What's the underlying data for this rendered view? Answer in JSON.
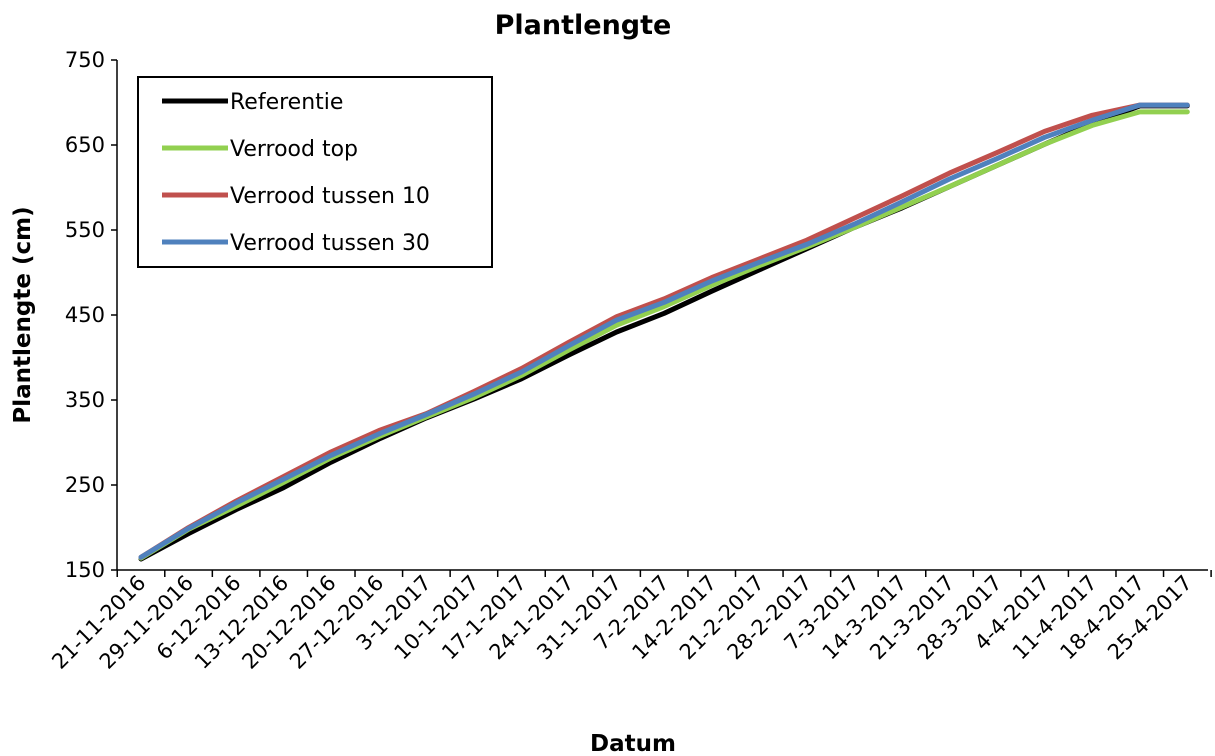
{
  "chart_data": {
    "type": "line",
    "title": "Plantlengte",
    "xlabel": "Datum",
    "ylabel": "Plantlengte (cm)",
    "ylim": [
      150,
      750
    ],
    "yticks": [
      150,
      250,
      350,
      450,
      550,
      650,
      750
    ],
    "legend_position": "top-left",
    "grid": false,
    "x_tick_labels": [
      "21-11-2016",
      "29-11-2016",
      "6-12-2016",
      "13-12-2016",
      "20-12-2016",
      "27-12-2016",
      "3-1-2017",
      "10-1-2017",
      "17-1-2017",
      "24-1-2017",
      "31-1-2017",
      "7-2-2017",
      "14-2-2017",
      "21-2-2017",
      "28-2-2017",
      "7-3-2017",
      "14-3-2017",
      "21-3-2017",
      "28-3-2017",
      "4-4-2017",
      "11-4-2017",
      "18-4-2017",
      "25-4-2017"
    ],
    "x": [
      "21-11-2016",
      "29-11-2016",
      "6-12-2016",
      "13-12-2016",
      "20-12-2016",
      "27-12-2016",
      "3-1-2017",
      "10-1-2017",
      "17-1-2017",
      "24-1-2017",
      "31-1-2017",
      "7-2-2017",
      "14-2-2017",
      "21-2-2017",
      "28-2-2017",
      "7-3-2017",
      "14-3-2017",
      "21-3-2017",
      "28-3-2017",
      "4-4-2017",
      "11-4-2017",
      "18-4-2017",
      "25-4-2017"
    ],
    "series": [
      {
        "name": "Referentie",
        "color": "#000000",
        "values": [
          163,
          193,
          221,
          247,
          277,
          304,
          329,
          351,
          375,
          403,
          430,
          452,
          478,
          503,
          528,
          553,
          576,
          601,
          626,
          651,
          675,
          696,
          696
        ]
      },
      {
        "name": "Verrood top",
        "color": "#92d050",
        "values": [
          164,
          198,
          225,
          253,
          282,
          307,
          330,
          353,
          379,
          409,
          438,
          460,
          485,
          508,
          530,
          553,
          577,
          601,
          626,
          651,
          673,
          689,
          689
        ]
      },
      {
        "name": "Verrood tussen 10",
        "color": "#c0504d",
        "values": [
          165,
          200,
          231,
          260,
          289,
          314,
          334,
          360,
          387,
          418,
          448,
          469,
          494,
          516,
          538,
          564,
          590,
          617,
          641,
          666,
          685,
          697,
          697
        ]
      },
      {
        "name": "Verrood tussen 30",
        "color": "#4f81bd",
        "values": [
          165,
          199,
          229,
          257,
          285,
          310,
          333,
          357,
          383,
          414,
          444,
          465,
          490,
          512,
          533,
          557,
          583,
          610,
          634,
          659,
          679,
          697,
          697
        ]
      }
    ]
  }
}
